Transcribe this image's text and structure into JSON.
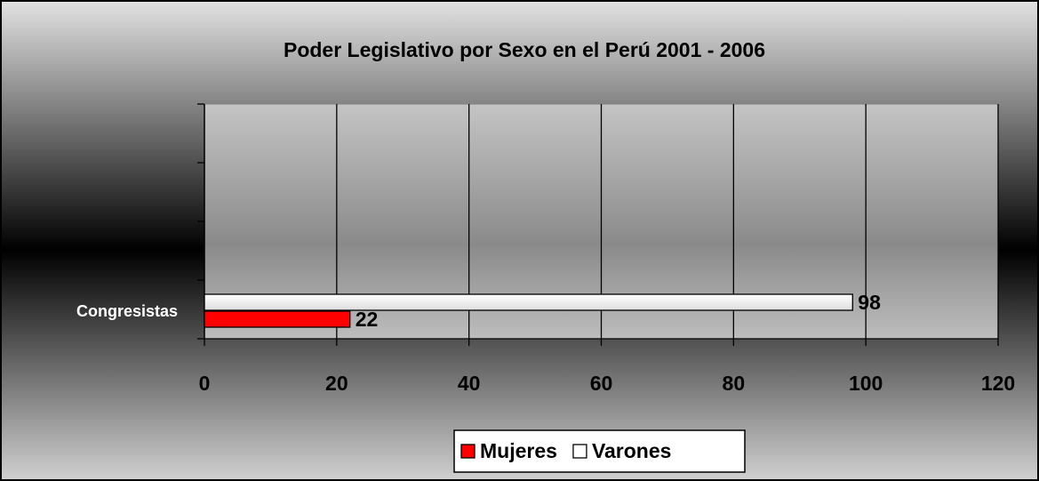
{
  "chart_data": {
    "type": "hbar",
    "title": "Poder Legislativo por Sexo en el Perú 2001 - 2006",
    "categories": [
      "Congresistas",
      null,
      null,
      null
    ],
    "series": [
      {
        "name": "Mujeres",
        "color": "#ff0000",
        "values": [
          22,
          null,
          null,
          null
        ]
      },
      {
        "name": "Varones",
        "color": "#ffffff",
        "values": [
          98,
          null,
          null,
          null
        ]
      }
    ],
    "xlim": [
      0,
      120
    ],
    "xticks": [
      0,
      20,
      40,
      60,
      80,
      100,
      120
    ],
    "grid": true,
    "legend": "bottom"
  }
}
